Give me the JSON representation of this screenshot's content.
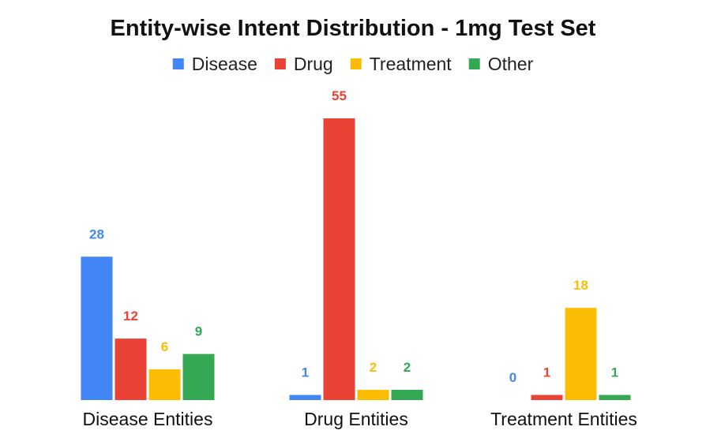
{
  "chart_data": {
    "type": "bar",
    "title": "Entity-wise Intent Distribution - 1mg Test Set",
    "xlabel": "",
    "ylabel": "",
    "categories": [
      "Disease Entities",
      "Drug Entities",
      "Treatment Entities"
    ],
    "series": [
      {
        "name": "Disease",
        "color": "#4285f4",
        "values": [
          28,
          1,
          0
        ]
      },
      {
        "name": "Drug",
        "color": "#ea4335",
        "values": [
          12,
          55,
          1
        ]
      },
      {
        "name": "Treatment",
        "color": "#fbbc04",
        "values": [
          6,
          2,
          18
        ]
      },
      {
        "name": "Other",
        "color": "#34a853",
        "values": [
          9,
          2,
          1
        ]
      }
    ],
    "ylim": [
      0,
      55
    ],
    "grid": false,
    "legend_position": "top-center",
    "data_labels": true
  }
}
